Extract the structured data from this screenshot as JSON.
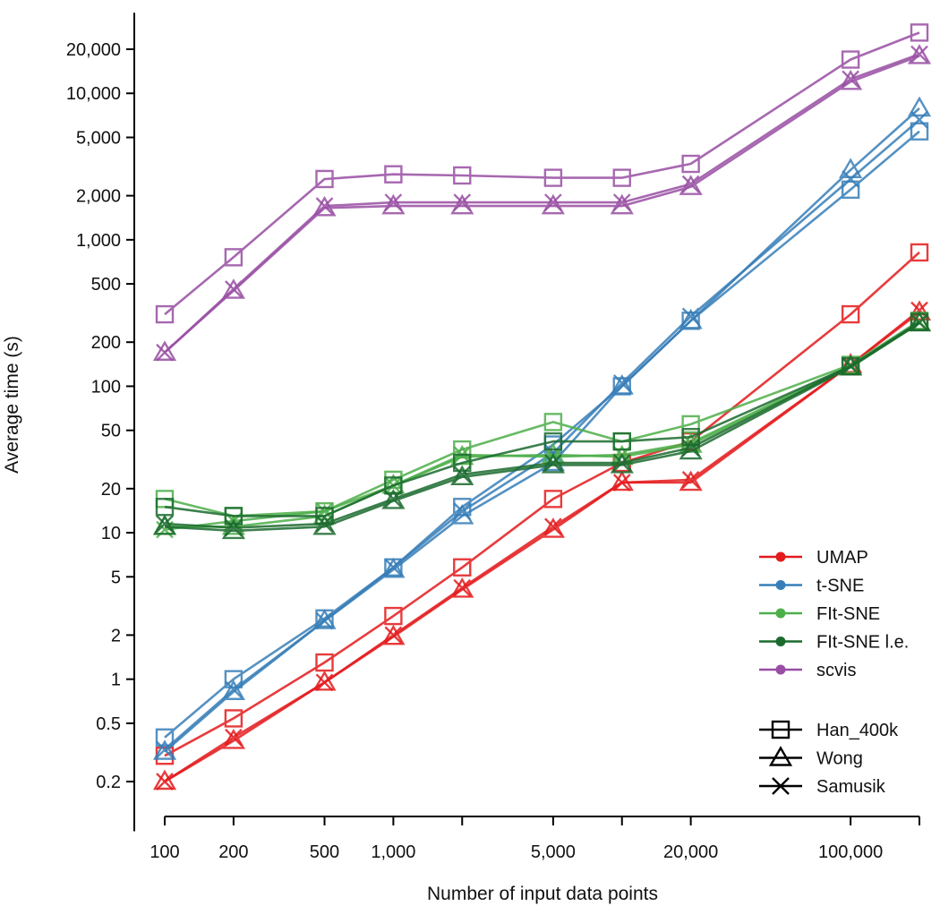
{
  "chart_data": {
    "type": "line",
    "xlabel": "Number of input data points",
    "ylabel": "Average time (s)",
    "x_scale": "log",
    "y_scale": "log",
    "x_ticks": [
      "100",
      "200",
      "500",
      "1,000",
      "5,000",
      "20,000",
      "100,000"
    ],
    "y_ticks": [
      "0.2",
      "0.5",
      "1",
      "2",
      "5",
      "10",
      "20",
      "50",
      "100",
      "200",
      "500",
      "1,000",
      "2,000",
      "5,000",
      "10,000",
      "20,000"
    ],
    "xlim": [
      100,
      200000
    ],
    "ylim": [
      0.15,
      30000
    ],
    "grid": false,
    "legend_position": "bottom-right",
    "x": [
      100,
      200,
      500,
      1000,
      2000,
      5000,
      10000,
      20000,
      100000,
      200000
    ],
    "methods": [
      {
        "name": "UMAP",
        "color": "#e41a1c"
      },
      {
        "name": "t-SNE",
        "color": "#377eb8"
      },
      {
        "name": "FIt-SNE",
        "color": "#4daf4a"
      },
      {
        "name": "FIt-SNE l.e.",
        "color": "#1b6b2e"
      },
      {
        "name": "scvis",
        "color": "#984ea3"
      }
    ],
    "datasets": [
      {
        "name": "Han_400k",
        "marker": "square"
      },
      {
        "name": "Wong",
        "marker": "triangle"
      },
      {
        "name": "Samusik",
        "marker": "x"
      }
    ],
    "series": [
      {
        "method": "UMAP",
        "dataset": "Han_400k",
        "values": [
          0.3,
          0.54,
          1.3,
          2.7,
          5.8,
          17,
          30,
          42,
          310,
          820
        ]
      },
      {
        "method": "UMAP",
        "dataset": "Wong",
        "values": [
          0.2,
          0.38,
          0.95,
          1.95,
          4.1,
          10.5,
          22,
          22,
          140,
          320
        ]
      },
      {
        "method": "UMAP",
        "dataset": "Samusik",
        "values": [
          0.2,
          0.4,
          0.95,
          2.0,
          4.2,
          11,
          22,
          23,
          140,
          330
        ]
      },
      {
        "method": "t-SNE",
        "dataset": "Han_400k",
        "values": [
          0.4,
          1.0,
          2.6,
          5.8,
          15,
          40,
          100,
          280,
          2200,
          5500
        ]
      },
      {
        "method": "t-SNE",
        "dataset": "Wong",
        "values": [
          0.32,
          0.82,
          2.5,
          5.6,
          13,
          30,
          100,
          280,
          3000,
          7900
        ]
      },
      {
        "method": "t-SNE",
        "dataset": "Samusik",
        "values": [
          0.33,
          0.85,
          2.5,
          5.8,
          14,
          35,
          105,
          300,
          2600,
          6600
        ]
      },
      {
        "method": "FIt-SNE",
        "dataset": "Han_400k",
        "values": [
          17,
          13,
          14,
          23,
          37,
          57,
          42,
          55,
          140,
          280
        ]
      },
      {
        "method": "FIt-SNE",
        "dataset": "Wong",
        "values": [
          11,
          11,
          13,
          21,
          33,
          34,
          33,
          40,
          135,
          270
        ]
      },
      {
        "method": "FIt-SNE",
        "dataset": "Samusik",
        "values": [
          10.5,
          12,
          14,
          21,
          34,
          33,
          34,
          41,
          138,
          275
        ]
      },
      {
        "method": "FIt-SNE l.e.",
        "dataset": "Han_400k",
        "values": [
          15,
          13,
          13,
          21,
          30,
          42,
          42,
          45,
          137,
          275
        ]
      },
      {
        "method": "FIt-SNE l.e.",
        "dataset": "Wong",
        "values": [
          11,
          10.3,
          11,
          16.5,
          24,
          29,
          29,
          36,
          135,
          270
        ]
      },
      {
        "method": "FIt-SNE l.e.",
        "dataset": "Samusik",
        "values": [
          11.5,
          10.8,
          11.5,
          17,
          25,
          30,
          30,
          38,
          137,
          272
        ]
      },
      {
        "method": "scvis",
        "dataset": "Han_400k",
        "values": [
          310,
          760,
          2600,
          2800,
          2750,
          2650,
          2650,
          3300,
          17000,
          26000
        ]
      },
      {
        "method": "scvis",
        "dataset": "Wong",
        "values": [
          170,
          450,
          1650,
          1700,
          1700,
          1700,
          1700,
          2300,
          12000,
          18000
        ]
      },
      {
        "method": "scvis",
        "dataset": "Samusik",
        "values": [
          170,
          460,
          1700,
          1800,
          1800,
          1800,
          1800,
          2400,
          12500,
          18500
        ]
      }
    ]
  }
}
